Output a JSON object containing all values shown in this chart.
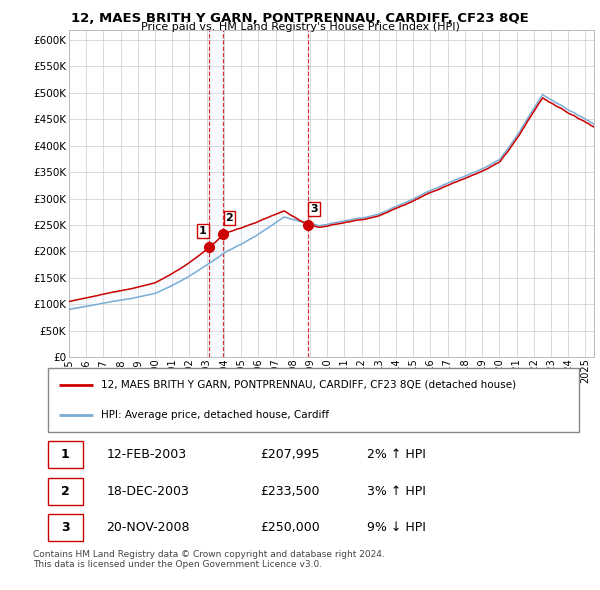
{
  "title": "12, MAES BRITH Y GARN, PONTPRENNAU, CARDIFF, CF23 8QE",
  "subtitle": "Price paid vs. HM Land Registry's House Price Index (HPI)",
  "ylim": [
    0,
    620000
  ],
  "yticks": [
    0,
    50000,
    100000,
    150000,
    200000,
    250000,
    300000,
    350000,
    400000,
    450000,
    500000,
    550000,
    600000
  ],
  "xlim_start": 1995.0,
  "xlim_end": 2025.5,
  "sales": [
    {
      "date": 2003.12,
      "price": 207995,
      "label": "1"
    },
    {
      "date": 2003.97,
      "price": 233500,
      "label": "2"
    },
    {
      "date": 2008.9,
      "price": 250000,
      "label": "3"
    }
  ],
  "hpi_line_color": "#7aaed6",
  "hpi_fill_color": "#d9e8f5",
  "price_line_color": "#cc0000",
  "legend_property_label": "12, MAES BRITH Y GARN, PONTPRENNAU, CARDIFF, CF23 8QE (detached house)",
  "legend_hpi_label": "HPI: Average price, detached house, Cardiff",
  "table_rows": [
    {
      "num": "1",
      "date": "12-FEB-2003",
      "price": "£207,995",
      "hpi": "2% ↑ HPI"
    },
    {
      "num": "2",
      "date": "18-DEC-2003",
      "price": "£233,500",
      "hpi": "3% ↑ HPI"
    },
    {
      "num": "3",
      "date": "20-NOV-2008",
      "price": "£250,000",
      "hpi": "9% ↓ HPI"
    }
  ],
  "footer": "Contains HM Land Registry data © Crown copyright and database right 2024.\nThis data is licensed under the Open Government Licence v3.0.",
  "grid_color": "#cccccc"
}
